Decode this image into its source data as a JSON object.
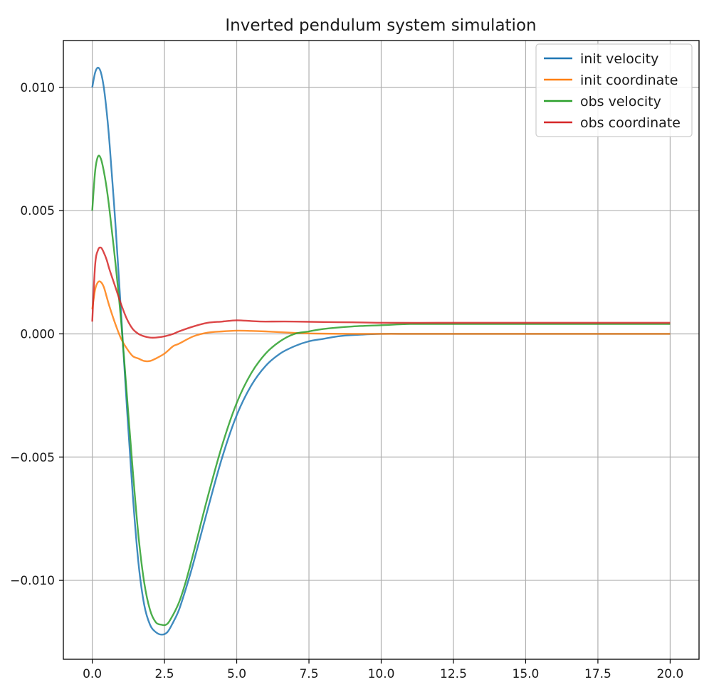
{
  "chart_data": {
    "type": "line",
    "title": "Inverted pendulum system simulation",
    "xlabel": "",
    "ylabel": "",
    "xlim": [
      -1.0,
      21.0
    ],
    "ylim": [
      -0.0132,
      0.0119
    ],
    "grid": true,
    "legend": "top-right",
    "x_ticks": [
      0.0,
      2.5,
      5.0,
      7.5,
      10.0,
      12.5,
      15.0,
      17.5,
      20.0
    ],
    "x_tick_labels": [
      "0.0",
      "2.5",
      "5.0",
      "7.5",
      "10.0",
      "12.5",
      "15.0",
      "17.5",
      "20.0"
    ],
    "y_ticks": [
      0.01,
      0.005,
      0.0,
      -0.005,
      -0.01
    ],
    "y_tick_labels": [
      "0.010",
      "0.005",
      "0.000",
      "−0.005",
      "−0.010"
    ],
    "series": [
      {
        "name": "init velocity",
        "color": "#1f77b4",
        "x": [
          0.0,
          0.1,
          0.2,
          0.3,
          0.4,
          0.5,
          0.6,
          0.8,
          1.0,
          1.2,
          1.4,
          1.6,
          1.8,
          2.0,
          2.2,
          2.4,
          2.6,
          2.8,
          3.0,
          3.25,
          3.5,
          4.0,
          4.5,
          5.0,
          5.5,
          6.0,
          6.5,
          7.0,
          7.5,
          8.0,
          8.5,
          9.0,
          10.0,
          11.0,
          12.0,
          14.0,
          16.0,
          18.0,
          20.0
        ],
        "y": [
          0.01,
          0.0106,
          0.0108,
          0.0106,
          0.01,
          0.009,
          0.0077,
          0.0045,
          0.0008,
          -0.003,
          -0.0065,
          -0.0093,
          -0.011,
          -0.0118,
          -0.0121,
          -0.0122,
          -0.0121,
          -0.0117,
          -0.0112,
          -0.0103,
          -0.0093,
          -0.0071,
          -0.005,
          -0.0033,
          -0.0021,
          -0.0013,
          -0.0008,
          -0.0005,
          -0.0003,
          -0.0002,
          -0.0001,
          -5e-05,
          0.0,
          0.0,
          0.0,
          0.0,
          0.0,
          0.0,
          0.0
        ]
      },
      {
        "name": "init coordinate",
        "color": "#ff7f0e",
        "x": [
          0.0,
          0.1,
          0.2,
          0.3,
          0.4,
          0.5,
          0.6,
          0.8,
          1.0,
          1.2,
          1.4,
          1.6,
          1.8,
          2.0,
          2.2,
          2.5,
          2.8,
          3.0,
          3.5,
          4.0,
          4.5,
          5.0,
          5.5,
          6.0,
          6.5,
          7.0,
          7.5,
          8.0,
          9.0,
          10.0,
          12.0,
          14.0,
          16.0,
          18.0,
          20.0
        ],
        "y": [
          0.001,
          0.0018,
          0.0021,
          0.0021,
          0.0019,
          0.0015,
          0.0011,
          0.0004,
          -0.0002,
          -0.0006,
          -0.0009,
          -0.001,
          -0.0011,
          -0.0011,
          -0.001,
          -0.0008,
          -0.0005,
          -0.0004,
          -0.0001,
          5e-05,
          0.0001,
          0.00013,
          0.00012,
          0.0001,
          7e-05,
          4e-05,
          2e-05,
          1e-05,
          0.0,
          0.0,
          0.0,
          0.0,
          0.0,
          0.0,
          0.0
        ]
      },
      {
        "name": "obs velocity",
        "color": "#2ca02c",
        "x": [
          0.0,
          0.1,
          0.2,
          0.3,
          0.4,
          0.5,
          0.6,
          0.8,
          1.0,
          1.2,
          1.4,
          1.6,
          1.8,
          2.0,
          2.2,
          2.4,
          2.55,
          2.7,
          3.0,
          3.25,
          3.5,
          4.0,
          4.5,
          5.0,
          5.5,
          6.0,
          6.5,
          7.0,
          7.5,
          8.0,
          9.0,
          10.0,
          11.0,
          12.0,
          14.0,
          16.0,
          18.0,
          20.0
        ],
        "y": [
          0.005,
          0.0066,
          0.0072,
          0.0071,
          0.0066,
          0.0059,
          0.005,
          0.0029,
          0.0005,
          -0.0025,
          -0.0055,
          -0.0082,
          -0.0101,
          -0.0112,
          -0.0117,
          -0.0118,
          -0.0118,
          -0.0116,
          -0.0109,
          -0.01,
          -0.0089,
          -0.0066,
          -0.0045,
          -0.0028,
          -0.0016,
          -0.0008,
          -0.0003,
          0.0,
          0.0001,
          0.0002,
          0.0003,
          0.00035,
          0.0004,
          0.0004,
          0.0004,
          0.0004,
          0.0004,
          0.0004
        ]
      },
      {
        "name": "obs coordinate",
        "color": "#d62728",
        "x": [
          0.0,
          0.1,
          0.2,
          0.3,
          0.4,
          0.5,
          0.6,
          0.8,
          1.0,
          1.2,
          1.4,
          1.6,
          1.8,
          2.0,
          2.2,
          2.5,
          2.8,
          3.0,
          3.5,
          4.0,
          4.5,
          5.0,
          5.5,
          6.0,
          7.0,
          8.0,
          9.0,
          10.0,
          12.0,
          14.0,
          16.0,
          18.0,
          20.0
        ],
        "y": [
          0.0005,
          0.0028,
          0.0034,
          0.0035,
          0.0033,
          0.003,
          0.0026,
          0.0019,
          0.0012,
          0.0006,
          0.0002,
          0.0,
          -0.0001,
          -0.00015,
          -0.00015,
          -0.0001,
          0.0,
          0.0001,
          0.0003,
          0.00045,
          0.0005,
          0.00055,
          0.00052,
          0.0005,
          0.0005,
          0.00048,
          0.00047,
          0.00045,
          0.00045,
          0.00045,
          0.00045,
          0.00045,
          0.00045
        ]
      }
    ]
  }
}
